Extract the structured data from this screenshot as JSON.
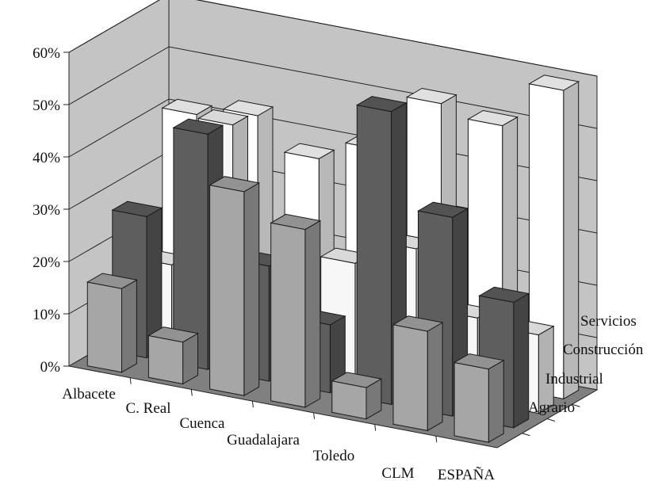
{
  "chart_data": {
    "type": "bar",
    "title": "",
    "xlabel": "",
    "ylabel": "",
    "ylim": [
      0,
      60
    ],
    "yticks": [
      "0%",
      "10%",
      "20%",
      "30%",
      "40%",
      "50%",
      "60%"
    ],
    "grid": true,
    "categories": [
      "Albacete",
      "C. Real",
      "Cuenca",
      "Guadalajara",
      "Toledo",
      "CLM",
      "ESPAÑA"
    ],
    "series": [
      {
        "name": "Agrario",
        "values": [
          16,
          8,
          39,
          34,
          6,
          19,
          14
        ],
        "color": "#a6a6a6"
      },
      {
        "name": "Industrial",
        "values": [
          27,
          45,
          22,
          13,
          56,
          38,
          24
        ],
        "color": "#5e5e5e"
      },
      {
        "name": "Construcción",
        "values": [
          15,
          44,
          15,
          22,
          27,
          16,
          15
        ],
        "color": "#f7f7f7"
      },
      {
        "name": "Servicios",
        "values": [
          41,
          43,
          37,
          41,
          52,
          50,
          59
        ],
        "color": "#ffffff"
      }
    ]
  }
}
